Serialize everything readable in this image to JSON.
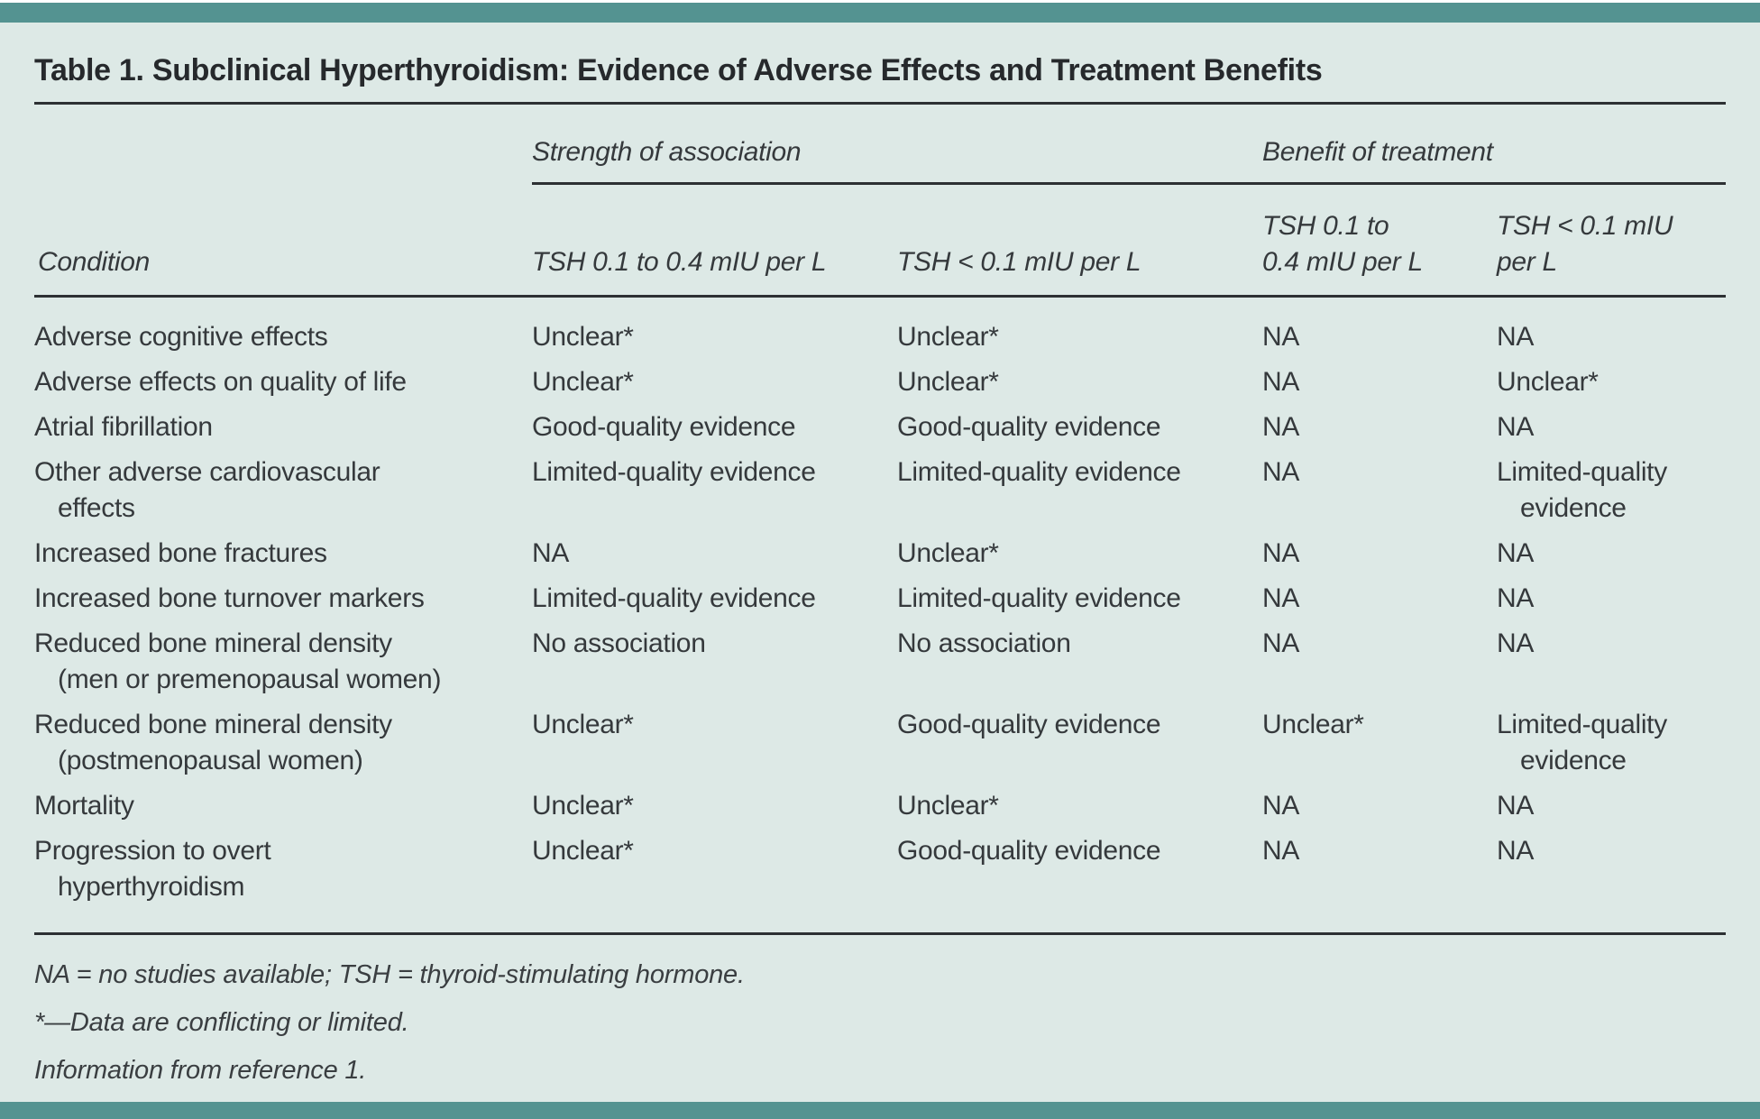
{
  "title": "Table 1. Subclinical Hyperthyroidism: Evidence of Adverse Effects and Treatment Benefits",
  "colors": {
    "accent_bar_teal": "#549391",
    "background_mint": "#dde9e6",
    "rule_dark": "#2c3033",
    "text_dark": "#35393c"
  },
  "table": {
    "group_headers": {
      "strength": "Strength of association",
      "benefit": "Benefit of treatment"
    },
    "column_headers": {
      "condition": "Condition",
      "strength_tsh_01_04": "TSH 0.1 to 0.4 mIU per L",
      "strength_tsh_lt_01": "TSH < 0.1 mIU per L",
      "benefit_tsh_01_04": "TSH 0.1 to\n0.4 mIU per L",
      "benefit_tsh_lt_01": "TSH < 0.1 mIU\nper L"
    },
    "rows": [
      {
        "cells": [
          "Adverse cognitive effects",
          "Unclear*",
          "Unclear*",
          "NA",
          "NA"
        ]
      },
      {
        "cells": [
          "Adverse effects on quality of life",
          "Unclear*",
          "Unclear*",
          "NA",
          "Unclear*"
        ]
      },
      {
        "cells": [
          "Atrial fibrillation",
          "Good-quality evidence",
          "Good-quality evidence",
          "NA",
          "NA"
        ]
      },
      {
        "cells": [
          "Other adverse cardiovascular\neffects",
          "Limited-quality evidence",
          "Limited-quality evidence",
          "NA",
          "Limited-quality\nevidence"
        ]
      },
      {
        "cells": [
          "Increased bone fractures",
          "NA",
          "Unclear*",
          "NA",
          "NA"
        ]
      },
      {
        "cells": [
          "Increased bone turnover markers",
          "Limited-quality evidence",
          "Limited-quality evidence",
          "NA",
          "NA"
        ]
      },
      {
        "cells": [
          "Reduced bone mineral density\n(men or premenopausal women)",
          "No association",
          "No association",
          "NA",
          "NA"
        ]
      },
      {
        "cells": [
          "Reduced bone mineral density\n(postmenopausal women)",
          "Unclear*",
          "Good-quality evidence",
          "Unclear*",
          "Limited-quality\nevidence"
        ]
      },
      {
        "cells": [
          "Mortality",
          "Unclear*",
          "Unclear*",
          "NA",
          "NA"
        ]
      },
      {
        "cells": [
          "Progression to overt\nhyperthyroidism",
          "Unclear*",
          "Good-quality evidence",
          "NA",
          "NA"
        ]
      }
    ]
  },
  "footnotes": [
    "NA = no studies available; TSH = thyroid-stimulating hormone.",
    "*—Data are conflicting or limited.",
    "Information from reference 1."
  ]
}
